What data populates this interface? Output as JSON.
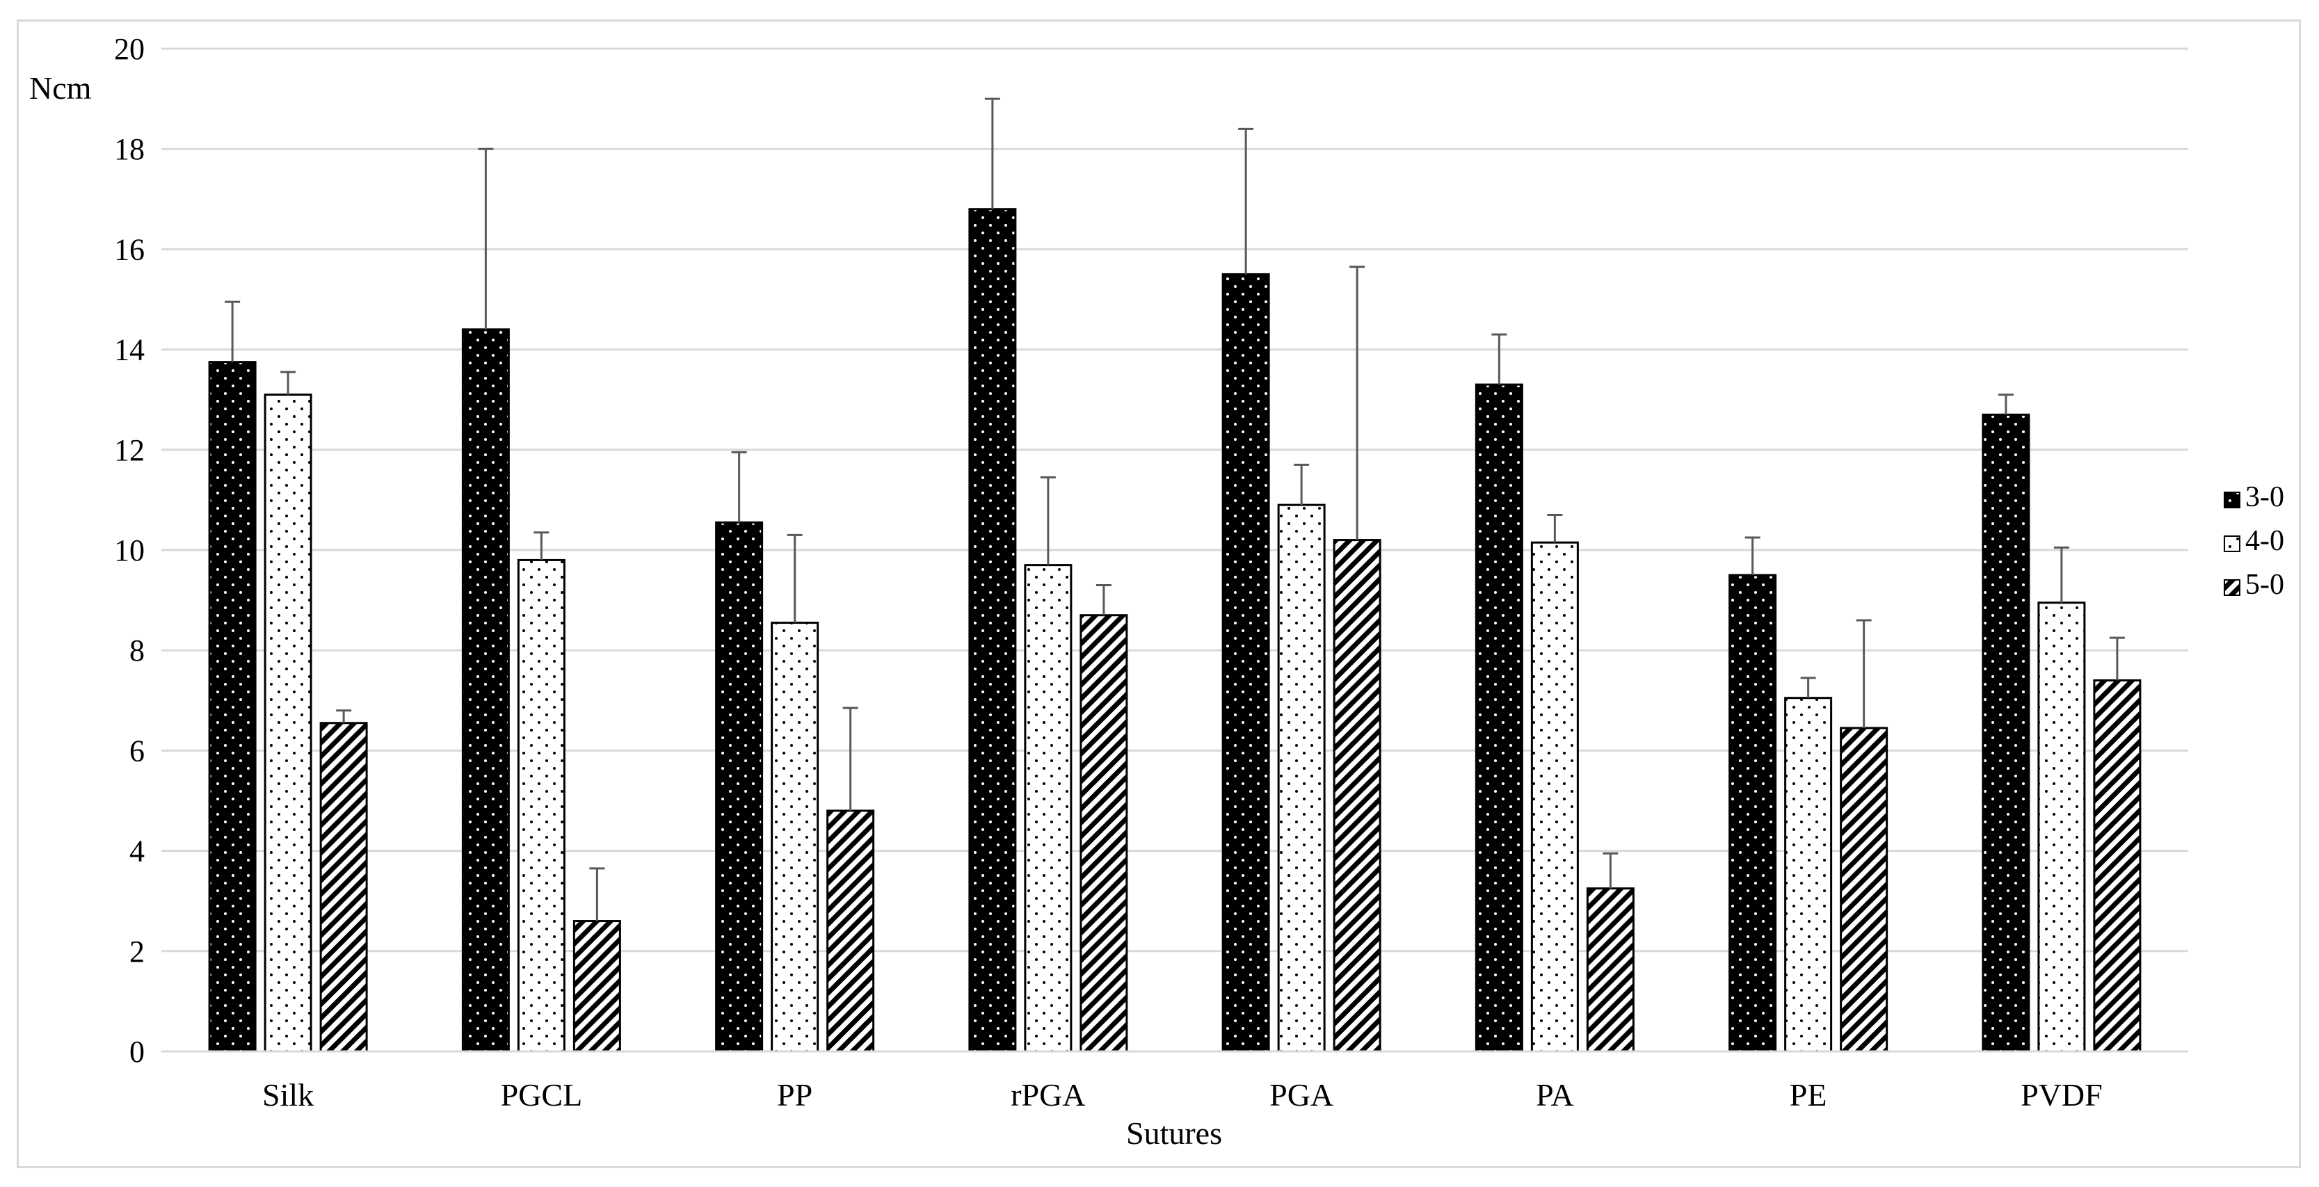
{
  "chart_data": {
    "type": "bar",
    "title": "",
    "xlabel": "Sutures",
    "ylabel": "Ncm",
    "ylim": [
      0,
      20
    ],
    "yticks": [
      0,
      2,
      4,
      6,
      8,
      10,
      12,
      14,
      16,
      18,
      20
    ],
    "grid": true,
    "legend_position": "right",
    "categories": [
      "Silk",
      "PGCL",
      "PP",
      "rPGA",
      "PGA",
      "PA",
      "PE",
      "PVDF"
    ],
    "series": [
      {
        "name": "3-0",
        "pattern": "dots-on-black",
        "values": [
          13.75,
          14.4,
          10.55,
          16.8,
          15.5,
          13.3,
          9.5,
          12.7
        ],
        "errors": [
          1.2,
          3.6,
          1.4,
          2.2,
          2.9,
          1.0,
          0.75,
          0.4
        ]
      },
      {
        "name": "4-0",
        "pattern": "dots-on-white",
        "values": [
          13.1,
          9.8,
          8.55,
          9.7,
          10.9,
          10.15,
          7.05,
          8.95
        ],
        "errors": [
          0.45,
          0.55,
          1.75,
          1.75,
          0.8,
          0.55,
          0.4,
          1.1
        ]
      },
      {
        "name": "5-0",
        "pattern": "diagonal-hatch",
        "values": [
          6.55,
          2.6,
          4.8,
          8.7,
          10.2,
          3.25,
          6.45,
          7.4
        ],
        "errors": [
          0.25,
          1.05,
          2.05,
          0.6,
          5.45,
          0.7,
          2.15,
          0.85
        ]
      }
    ],
    "colors": {
      "bar_outline": "#000000",
      "grid": "#d9d9d9",
      "error_bar": "#595959",
      "frame": "#d9d9d9"
    }
  }
}
